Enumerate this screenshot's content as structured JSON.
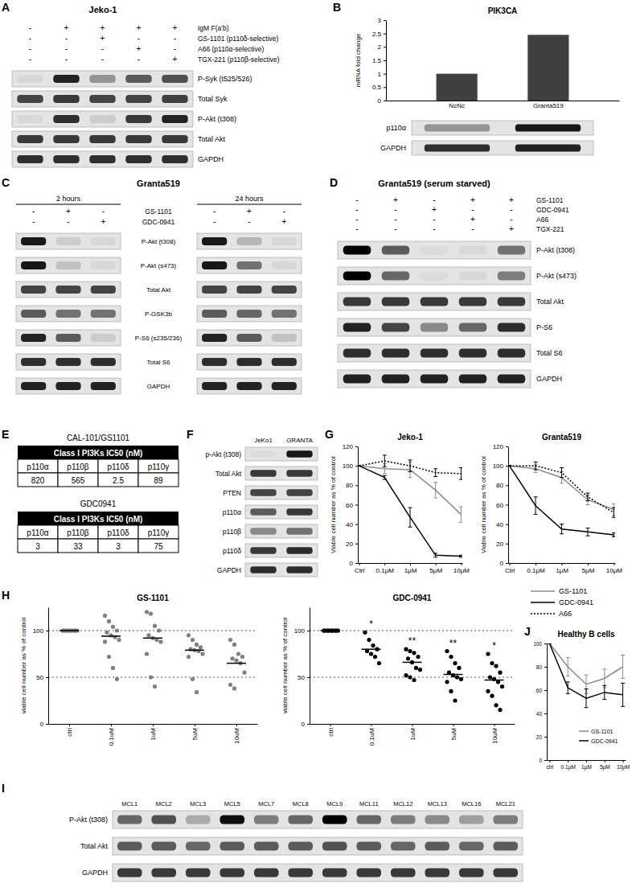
{
  "figure": {
    "A": {
      "label": "A",
      "title": "Jeko-1",
      "treatments": [
        {
          "name": "IgM F(a'b)",
          "signs": [
            "-",
            "+",
            "+",
            "+",
            "+"
          ]
        },
        {
          "name": "GS-1101 (p110δ-selective)",
          "signs": [
            "-",
            "-",
            "+",
            "-",
            "-"
          ]
        },
        {
          "name": "A66 (p110α-selective)",
          "signs": [
            "-",
            "-",
            "-",
            "+",
            "-"
          ]
        },
        {
          "name": "TGX-221 (p110β-selective)",
          "signs": [
            "-",
            "-",
            "-",
            "-",
            "+"
          ]
        }
      ],
      "blots": [
        {
          "name": "P-Syk (t525/526)",
          "intensity": [
            0.05,
            0.85,
            0.35,
            0.6,
            0.65
          ]
        },
        {
          "name": "Total Syk",
          "intensity": [
            0.7,
            0.75,
            0.7,
            0.7,
            0.72
          ]
        },
        {
          "name": "P-Akt (t308)",
          "intensity": [
            0.05,
            0.8,
            0.1,
            0.75,
            0.85
          ]
        },
        {
          "name": "Total Akt",
          "intensity": [
            0.75,
            0.75,
            0.75,
            0.75,
            0.75
          ]
        },
        {
          "name": "GAPDH",
          "intensity": [
            0.8,
            0.8,
            0.8,
            0.8,
            0.8
          ]
        }
      ]
    },
    "B": {
      "label": "B",
      "blots": [
        {
          "name": "p110α",
          "intensity": [
            0.35,
            0.9
          ]
        },
        {
          "name": "GAPDH",
          "intensity": [
            0.8,
            0.85
          ]
        }
      ]
    },
    "C": {
      "label": "C",
      "title": "Granta519",
      "groups": [
        "2 hours",
        "24 hours"
      ],
      "treatments": [
        {
          "name": "GS-1101",
          "signs": [
            "-",
            "+",
            "-",
            "-",
            "+",
            "-"
          ]
        },
        {
          "name": "GDC-0941",
          "signs": [
            "-",
            "-",
            "+",
            "-",
            "-",
            "+"
          ]
        }
      ],
      "blots": [
        {
          "name": "P-Akt (t308)",
          "intensity": [
            0.9,
            0.1,
            0.05,
            0.9,
            0.2,
            0.05
          ]
        },
        {
          "name": "P-Akt (s473)",
          "intensity": [
            0.9,
            0.15,
            0.05,
            0.9,
            0.5,
            0.05
          ]
        },
        {
          "name": "Total Akt",
          "intensity": [
            0.7,
            0.7,
            0.7,
            0.7,
            0.7,
            0.7
          ]
        },
        {
          "name": "P-GSK3b",
          "intensity": [
            0.6,
            0.5,
            0.5,
            0.6,
            0.55,
            0.5
          ]
        },
        {
          "name": "P-S6 (s235/236)",
          "intensity": [
            0.85,
            0.6,
            0.1,
            0.85,
            0.6,
            0.15
          ]
        },
        {
          "name": "Total S6",
          "intensity": [
            0.8,
            0.8,
            0.8,
            0.8,
            0.8,
            0.8
          ]
        },
        {
          "name": "GAPDH",
          "intensity": [
            0.85,
            0.85,
            0.85,
            0.85,
            0.85,
            0.85
          ]
        }
      ]
    },
    "D": {
      "label": "D",
      "title": "Granta519 (serum starved)",
      "treatments": [
        {
          "name": "GS-1101",
          "signs": [
            "-",
            "+",
            "-",
            "+",
            "+"
          ]
        },
        {
          "name": "GDC-0941",
          "signs": [
            "-",
            "-",
            "+",
            "-",
            "-"
          ]
        },
        {
          "name": "A66",
          "signs": [
            "-",
            "-",
            "-",
            "+",
            "-"
          ]
        },
        {
          "name": "TGX-221",
          "signs": [
            "-",
            "-",
            "-",
            "-",
            "+"
          ]
        }
      ],
      "blots": [
        {
          "name": "P-Akt (t308)",
          "intensity": [
            1,
            0.6,
            0.03,
            0.05,
            0.5
          ]
        },
        {
          "name": "P-Akt (s473)",
          "intensity": [
            1,
            0.55,
            0.03,
            0.05,
            0.45
          ]
        },
        {
          "name": "Total Akt",
          "intensity": [
            0.75,
            0.75,
            0.75,
            0.75,
            0.75
          ]
        },
        {
          "name": "P-S6",
          "intensity": [
            0.85,
            0.7,
            0.4,
            0.55,
            0.8
          ]
        },
        {
          "name": "Total S6",
          "intensity": [
            0.8,
            0.8,
            0.8,
            0.8,
            0.8
          ]
        },
        {
          "name": "GAPDH",
          "intensity": [
            0.85,
            0.85,
            0.85,
            0.85,
            0.85
          ]
        }
      ]
    },
    "E": {
      "label": "E",
      "tables": [
        {
          "title": "CAL-101/GS1101",
          "header": "Class I PI3Ks IC50 (nM)",
          "columns": [
            "p110α",
            "p110β",
            "p110δ",
            "p110γ"
          ],
          "values": [
            820,
            565,
            2.5,
            89
          ]
        },
        {
          "title": "GDC0941",
          "header": "Class I PI3Ks IC50 (nM)",
          "columns": [
            "p110α",
            "p110β",
            "p110δ",
            "p110γ"
          ],
          "values": [
            3,
            33,
            3,
            75
          ]
        }
      ]
    },
    "F": {
      "label": "F",
      "lanes": [
        "JeKo1",
        "GRANTA"
      ],
      "blots": [
        {
          "name": "p-Akt (t308)",
          "intensity": [
            0.03,
            0.9
          ]
        },
        {
          "name": "Total Akt",
          "intensity": [
            0.75,
            0.75
          ]
        },
        {
          "name": "PTEN",
          "intensity": [
            0.7,
            0.7
          ]
        },
        {
          "name": "p110α",
          "intensity": [
            0.6,
            0.75
          ]
        },
        {
          "name": "p110β",
          "intensity": [
            0.4,
            0.5
          ]
        },
        {
          "name": "p110δ",
          "intensity": [
            0.75,
            0.8
          ]
        },
        {
          "name": "GAPDH",
          "intensity": [
            0.8,
            0.8
          ]
        }
      ]
    },
    "G": {
      "label": "G"
    },
    "H": {
      "label": "H"
    },
    "I": {
      "label": "I",
      "lanes": [
        "MCL1",
        "MCL2",
        "MCL3",
        "MCL5",
        "MCL7",
        "MCL8",
        "MCL9",
        "MCL11",
        "MCL12",
        "MCL13",
        "MCL16",
        "MCL21"
      ],
      "blots": [
        {
          "name": "P-Akt (t308)",
          "intensity": [
            0.55,
            0.65,
            0.25,
            0.95,
            0.45,
            0.55,
            1,
            0.55,
            0.45,
            0.4,
            0.3,
            0.45
          ]
        },
        {
          "name": "Total Akt",
          "intensity": [
            0.6,
            0.6,
            0.55,
            0.6,
            0.6,
            0.6,
            0.65,
            0.6,
            0.55,
            0.6,
            0.55,
            0.6
          ]
        },
        {
          "name": "GAPDH",
          "intensity": [
            0.75,
            0.75,
            0.75,
            0.75,
            0.75,
            0.75,
            0.75,
            0.75,
            0.75,
            0.75,
            0.75,
            0.75
          ]
        }
      ]
    },
    "J": {
      "label": "J"
    }
  },
  "chart_data": [
    {
      "type": "bar",
      "title": "PIK3CA",
      "y_label": "mRNA fold change",
      "categories": [
        "NcNc",
        "Granta519"
      ],
      "values": [
        1,
        2.45
      ],
      "color": "#404040",
      "ylim": [
        0,
        3
      ],
      "yticks": [
        0,
        0.5,
        1,
        1.5,
        2,
        2.5,
        3
      ]
    },
    {
      "type": "line",
      "title": "Jeko-1",
      "y_label": "Viable cell number as % of control",
      "categories": [
        "Ctrl",
        "0.1μM",
        "1μM",
        "5μM",
        "10μM"
      ],
      "ylim": [
        0,
        120
      ],
      "yticks": [
        0,
        20,
        40,
        60,
        80,
        100,
        120
      ],
      "legend": "right",
      "series": [
        {
          "name": "GS-1101",
          "color": "#8c8c8c",
          "line_style": "solid",
          "values": [
            100,
            97,
            96,
            75,
            50
          ],
          "errors": [
            0,
            5,
            8,
            8,
            8
          ]
        },
        {
          "name": "GDC-0941",
          "color": "#000000",
          "line_style": "solid",
          "values": [
            100,
            88,
            47,
            8,
            7
          ],
          "errors": [
            0,
            2,
            10,
            2,
            1
          ]
        },
        {
          "name": "A66",
          "color": "#000000",
          "line_style": "dotted",
          "values": [
            100,
            105,
            100,
            93,
            92
          ],
          "errors": [
            0,
            6,
            6,
            4,
            6
          ]
        }
      ]
    },
    {
      "type": "line",
      "title": "Granta519",
      "y_label": "Viable cell number as % of control",
      "categories": [
        "Ctrl",
        "0.1μM",
        "1μM",
        "5μM",
        "10μM"
      ],
      "ylim": [
        0,
        120
      ],
      "yticks": [
        0,
        20,
        40,
        60,
        80,
        100,
        120
      ],
      "series": [
        {
          "color": "#8c8c8c",
          "line_style": "solid",
          "values": [
            100,
            97,
            88,
            65,
            55
          ],
          "errors": [
            0,
            4,
            6,
            5,
            6
          ]
        },
        {
          "color": "#000000",
          "line_style": "solid",
          "values": [
            100,
            59,
            35,
            32,
            29
          ],
          "errors": [
            0,
            9,
            5,
            4,
            2
          ]
        },
        {
          "color": "#000000",
          "line_style": "dotted",
          "values": [
            100,
            100,
            93,
            68,
            52
          ],
          "errors": [
            0,
            4,
            5,
            4,
            5
          ]
        }
      ]
    },
    {
      "type": "scatter",
      "title": "GS-1101",
      "y_label": "viable cell number as % of control",
      "categories": [
        "ctrl",
        "0.1uM",
        "1uM",
        "5uM",
        "10uM"
      ],
      "ylim": [
        0,
        125
      ],
      "yticks": [
        0,
        50,
        100
      ],
      "hlines": [
        50,
        100
      ],
      "color": "#808080",
      "values": [
        [
          100,
          100,
          100,
          100,
          100,
          100,
          100,
          100,
          100,
          100,
          100,
          100
        ],
        [
          116,
          110,
          104,
          100,
          98,
          95,
          93,
          90,
          88,
          72,
          60,
          48
        ],
        [
          120,
          118,
          105,
          100,
          95,
          92,
          90,
          88,
          75,
          50,
          40
        ],
        [
          95,
          90,
          85,
          82,
          80,
          79,
          78,
          75,
          72,
          48,
          34
        ],
        [
          90,
          85,
          75,
          72,
          70,
          68,
          65,
          55,
          42,
          38
        ]
      ],
      "means": [
        100,
        94,
        92,
        79,
        65
      ]
    },
    {
      "type": "scatter",
      "title": "GDC-0941",
      "y_label": "viable cell number as % of control",
      "categories": [
        "ctrl",
        "0.1uM",
        "1uM",
        "5uM",
        "10uM"
      ],
      "ylim": [
        0,
        125
      ],
      "yticks": [
        0,
        50,
        100
      ],
      "hlines": [
        50,
        100
      ],
      "color": "#000000",
      "values": [
        [
          100,
          100,
          100,
          100,
          100,
          100,
          100,
          100,
          100,
          100,
          100,
          100
        ],
        [
          98,
          90,
          84,
          80,
          78,
          75,
          72,
          65
        ],
        [
          80,
          78,
          76,
          72,
          70,
          66,
          60,
          58,
          52,
          50,
          47
        ],
        [
          78,
          72,
          65,
          60,
          55,
          52,
          50,
          48,
          45,
          35,
          25
        ],
        [
          75,
          65,
          62,
          55,
          50,
          48,
          45,
          40,
          35,
          30,
          20,
          15
        ]
      ],
      "means": [
        100,
        80,
        66,
        53,
        47
      ],
      "significance": [
        null,
        "*",
        "**",
        "**",
        "*"
      ]
    },
    {
      "type": "line",
      "title": "Healthy B cells",
      "categories": [
        "ctrl",
        "0.1μM",
        "1μM",
        "5μM",
        "10μM"
      ],
      "ylim": [
        0,
        100
      ],
      "yticks": [
        0,
        20,
        40,
        60,
        80,
        100
      ],
      "legend": "lower right",
      "series": [
        {
          "name": "GS-1101",
          "color": "#8c8c8c",
          "line_style": "solid",
          "values": [
            100,
            80,
            65,
            70,
            80
          ],
          "errors": [
            0,
            8,
            8,
            8,
            10
          ]
        },
        {
          "name": "GDC-0941",
          "color": "#000000",
          "line_style": "solid",
          "values": [
            100,
            62,
            53,
            58,
            56
          ],
          "errors": [
            0,
            5,
            8,
            6,
            10
          ]
        }
      ]
    }
  ]
}
